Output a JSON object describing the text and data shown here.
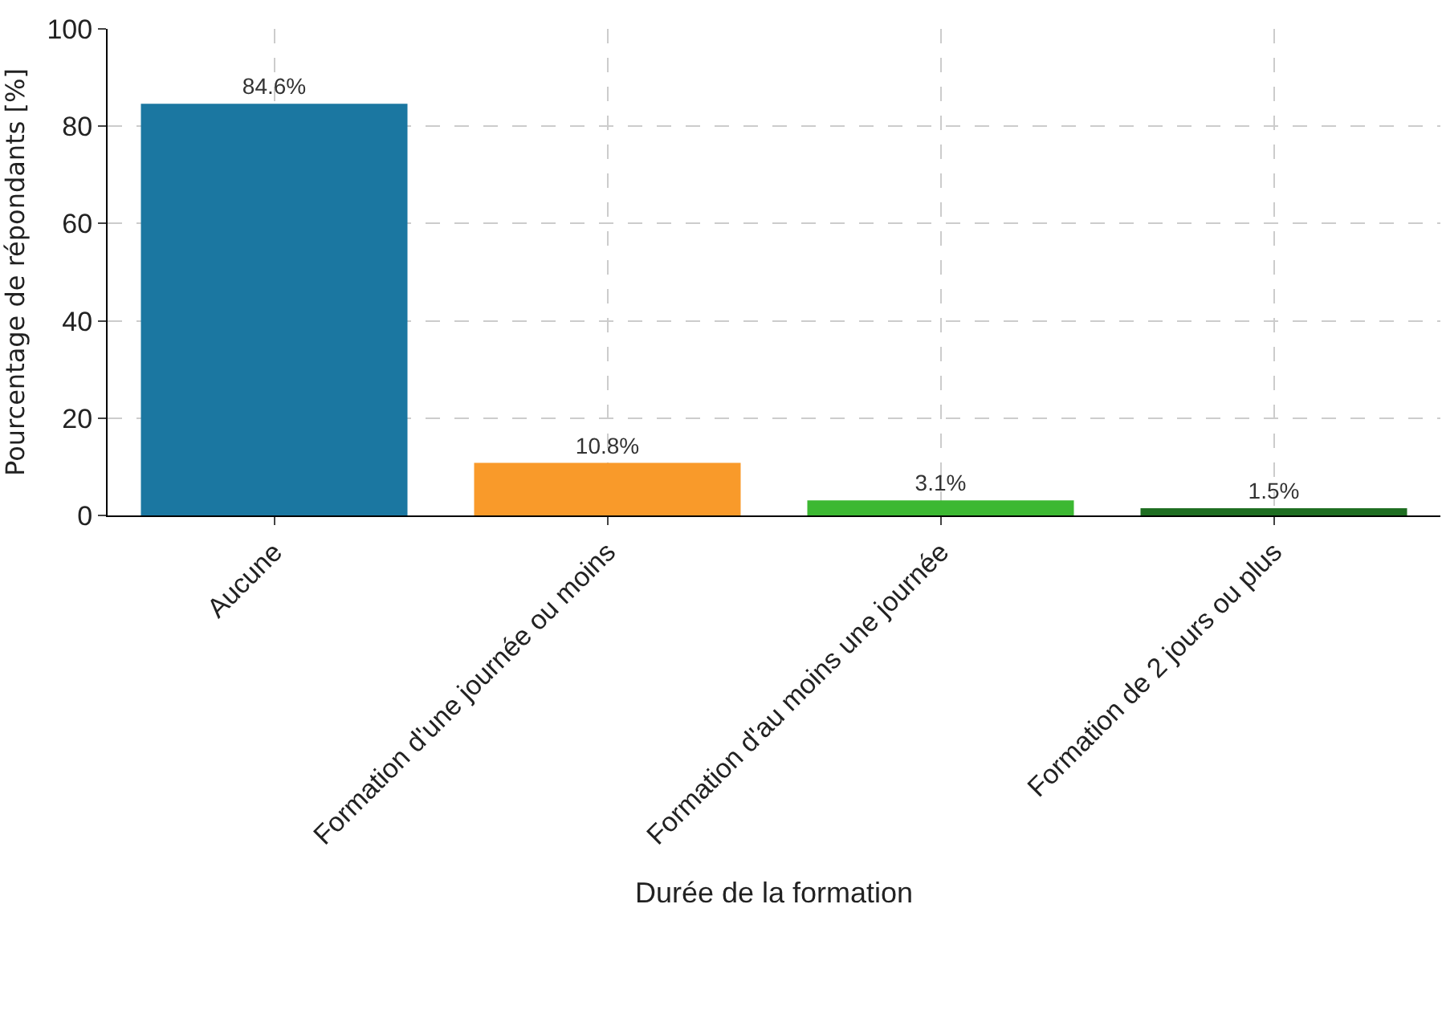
{
  "chart_data": {
    "type": "bar",
    "xlabel": "Durée de la formation",
    "ylabel": "Pourcentage de répondants [%]",
    "categories": [
      "Aucune",
      "Formation d'une journée ou moins",
      "Formation d'au moins une journée",
      "Formation de 2 jours ou plus"
    ],
    "values": [
      84.6,
      10.8,
      3.1,
      1.5
    ],
    "colors": [
      "#1b77a1",
      "#f99a2a",
      "#3cb832",
      "#1f6e22"
    ],
    "value_labels": [
      "84.6%",
      "10.8%",
      "3.1%",
      "1.5%"
    ],
    "ylim": [
      0,
      100
    ],
    "yticks": [
      0,
      20,
      40,
      60,
      80,
      100
    ],
    "grid": true
  }
}
